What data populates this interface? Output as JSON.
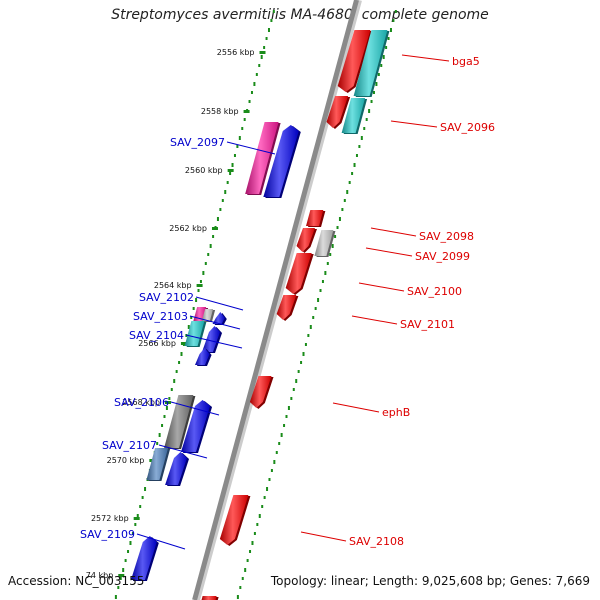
{
  "title": "Streptomyces avermitilis MA-4680, complete genome",
  "footer": {
    "accession": "Accession: NC_003155",
    "stats": "Topology: linear; Length: 9,025,608 bp; Genes: 7,669"
  },
  "colors": {
    "track_dots": "#1a8c1a",
    "backbone": "#8a8a8a",
    "label_left": "#0000cc",
    "label_right": "#dd0000",
    "gene_red": "#ff0000",
    "gene_blue": "#0000ee",
    "gene_cyan": "#20d0d0",
    "gene_pink": "#ff1aa0",
    "gene_gray": "#777777",
    "gene_lightgray": "#c8c8c8",
    "gene_steel": "#4a7fbf"
  },
  "ruler_unit": "kbp",
  "ruler_labels": [
    "2556 kbp",
    "2558 kbp",
    "2560 kbp",
    "2562 kbp",
    "2564 kbp",
    "2566 kbp",
    "2568 kbp",
    "2570 kbp",
    "2572 kbp",
    "74 kbp"
  ],
  "genes_left": [
    {
      "label": "SAV_2097",
      "color": "gene_pink"
    },
    {
      "label": "SAV_2102",
      "color": "gene_pink"
    },
    {
      "label": "SAV_2103",
      "color": "gene_cyan"
    },
    {
      "label": "SAV_2104",
      "color": "gene_blue"
    },
    {
      "label": "SAV_2106",
      "color": "gene_gray"
    },
    {
      "label": "SAV_2107",
      "color": "gene_steel"
    },
    {
      "label": "SAV_2109",
      "color": "gene_blue"
    }
  ],
  "genes_right": [
    {
      "label": "bga5",
      "color": "gene_cyan"
    },
    {
      "label": "SAV_2096",
      "color": "gene_cyan"
    },
    {
      "label": "SAV_2098",
      "color": "gene_red"
    },
    {
      "label": "SAV_2099",
      "color": "gene_lightgray"
    },
    {
      "label": "SAV_2100",
      "color": "gene_red"
    },
    {
      "label": "SAV_2101",
      "color": "gene_red"
    },
    {
      "label": "ephB",
      "color": "gene_red"
    },
    {
      "label": "SAV_2108",
      "color": "gene_red"
    }
  ]
}
